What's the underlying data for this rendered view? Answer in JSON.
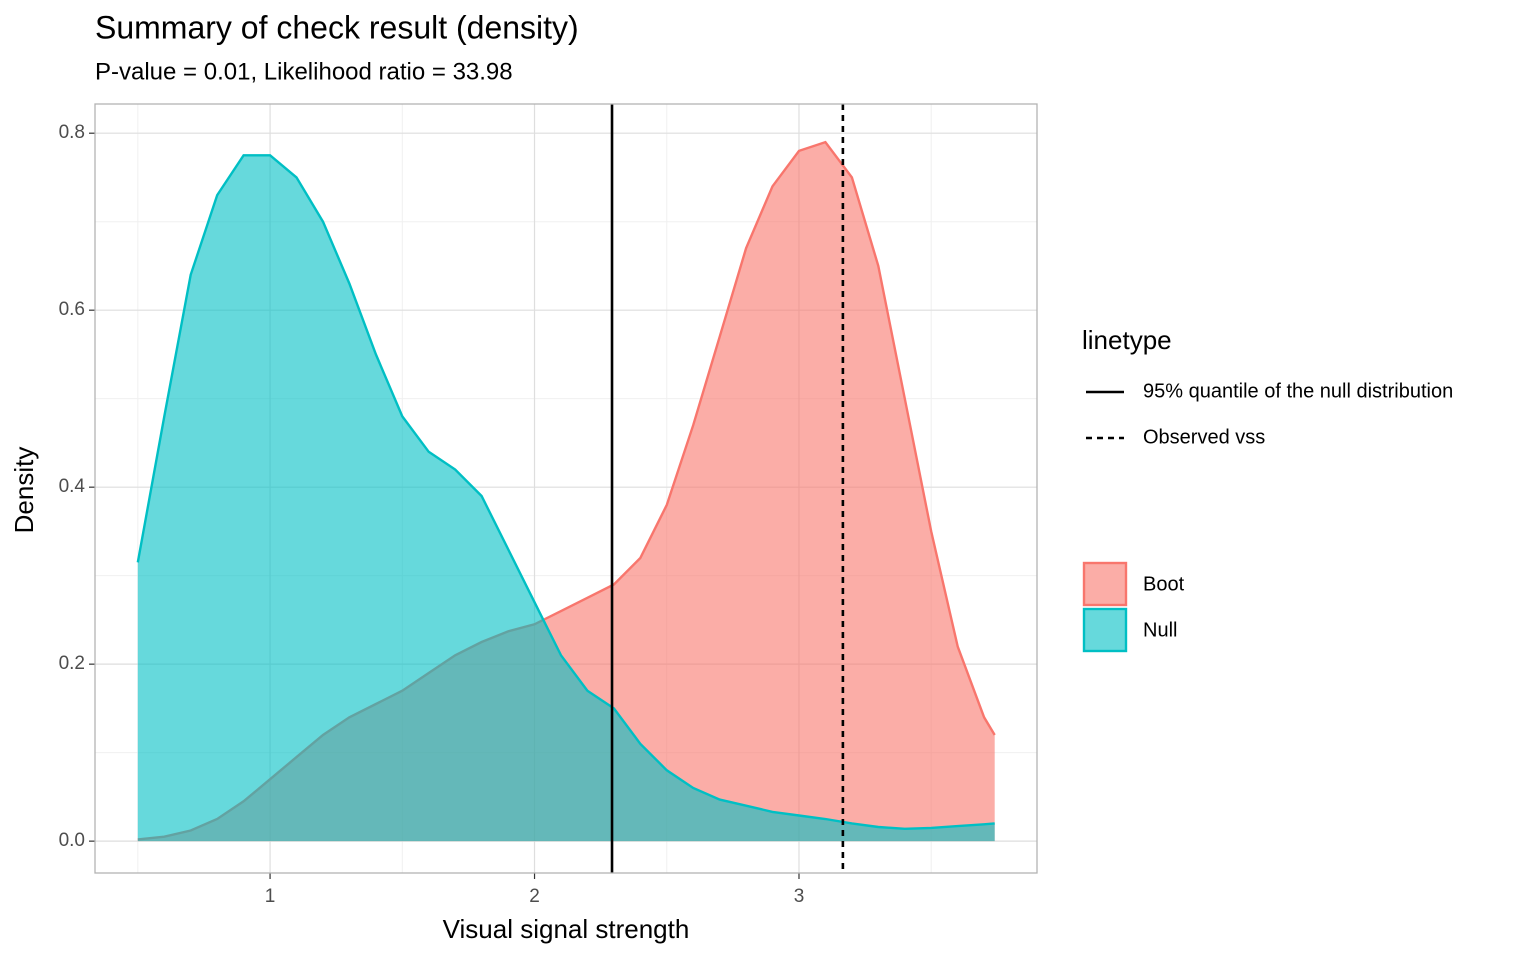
{
  "chart_data": {
    "type": "density",
    "title": "Summary of check result (density)",
    "subtitle": "P-value = 0.01, Likelihood ratio = 33.98",
    "x_label": "Visual signal strength",
    "y_label": "Density",
    "x": [
      0.5,
      0.6,
      0.7,
      0.8,
      0.9,
      1.0,
      1.1,
      1.2,
      1.3,
      1.4,
      1.5,
      1.6,
      1.7,
      1.8,
      1.9,
      2.0,
      2.1,
      2.2,
      2.3,
      2.4,
      2.5,
      2.6,
      2.7,
      2.8,
      2.9,
      3.0,
      3.1,
      3.2,
      3.3,
      3.4,
      3.5,
      3.6,
      3.7,
      3.74
    ],
    "series": [
      {
        "name": "Boot",
        "color": "#F8766D",
        "values": [
          0.002,
          0.005,
          0.012,
          0.025,
          0.045,
          0.07,
          0.095,
          0.12,
          0.14,
          0.155,
          0.17,
          0.19,
          0.21,
          0.225,
          0.237,
          0.245,
          0.26,
          0.275,
          0.29,
          0.32,
          0.38,
          0.47,
          0.57,
          0.67,
          0.74,
          0.78,
          0.79,
          0.75,
          0.65,
          0.5,
          0.35,
          0.22,
          0.14,
          0.12
        ]
      },
      {
        "name": "Null",
        "color": "#00BFC4",
        "values": [
          0.315,
          0.48,
          0.64,
          0.73,
          0.775,
          0.775,
          0.75,
          0.7,
          0.63,
          0.55,
          0.48,
          0.44,
          0.42,
          0.39,
          0.33,
          0.27,
          0.21,
          0.17,
          0.15,
          0.11,
          0.08,
          0.06,
          0.047,
          0.04,
          0.033,
          0.029,
          0.025,
          0.02,
          0.016,
          0.014,
          0.015,
          0.017,
          0.019,
          0.02
        ]
      }
    ],
    "linetype_legend_title": "linetype",
    "vlines": [
      {
        "name": "95% quantile of the null distribution",
        "x": 2.293,
        "linetype": "solid"
      },
      {
        "name": "Observed vss",
        "x": 3.166,
        "linetype": "dashed"
      }
    ],
    "xlim": [
      0.338,
      3.9
    ],
    "ylim": [
      -0.036,
      0.833
    ],
    "xticks": [
      1,
      2,
      3
    ],
    "yticks": [
      {
        "value": 0,
        "label": "0.0"
      },
      0.2,
      0.4,
      0.6,
      0.8
    ],
    "x_minor_grid": [
      0.5,
      1.5,
      2.5,
      3.5
    ],
    "y_minor_grid": [
      0.1,
      0.3,
      0.5,
      0.7
    ],
    "grid": true
  }
}
